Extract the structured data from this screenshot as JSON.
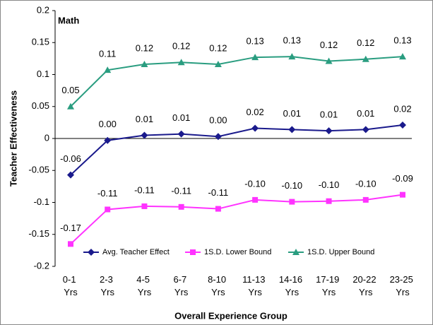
{
  "chart_data": {
    "type": "line",
    "title": "Math",
    "x_label": "Overall Experience Group",
    "y_label": "Teacher Effectiveness",
    "categories": [
      "0-1 Yrs",
      "2-3 Yrs",
      "4-5 Yrs",
      "6-7 Yrs",
      "8-10 Yrs",
      "11-13 Yrs",
      "14-16 Yrs",
      "17-19 Yrs",
      "20-22 Yrs",
      "23-25 Yrs"
    ],
    "series": [
      {
        "name": "Avg. Teacher Effect",
        "color": "#1a1a8c",
        "marker": "diamond",
        "values": [
          -0.057,
          -0.003,
          0.005,
          0.007,
          0.003,
          0.016,
          0.014,
          0.012,
          0.014,
          0.021
        ],
        "value_labels": [
          "-0.06",
          "0.00",
          "0.01",
          "0.01",
          "0.00",
          "0.02",
          "0.01",
          "0.01",
          "0.01",
          "0.02"
        ]
      },
      {
        "name": "1S.D. Lower Bound",
        "color": "#ff33ff",
        "marker": "square",
        "values": [
          -0.165,
          -0.111,
          -0.106,
          -0.107,
          -0.11,
          -0.096,
          -0.099,
          -0.098,
          -0.096,
          -0.088
        ],
        "value_labels": [
          "-0.17",
          "-0.11",
          "-0.11",
          "-0.11",
          "-0.11",
          "-0.10",
          "-0.10",
          "-0.10",
          "-0.10",
          "-0.09"
        ]
      },
      {
        "name": "1S.D. Upper Bound",
        "color": "#2a9d80",
        "marker": "triangle",
        "values": [
          0.05,
          0.107,
          0.116,
          0.119,
          0.116,
          0.127,
          0.128,
          0.121,
          0.124,
          0.128
        ],
        "value_labels": [
          "0.05",
          "0.11",
          "0.12",
          "0.12",
          "0.12",
          "0.13",
          "0.13",
          "0.12",
          "0.12",
          "0.13"
        ]
      }
    ],
    "ylim": [
      -0.2,
      0.2
    ],
    "yticks": [
      -0.2,
      -0.15,
      -0.1,
      -0.05,
      0,
      0.05,
      0.1,
      0.15,
      0.2
    ],
    "grid": false,
    "legend": "bottom"
  }
}
